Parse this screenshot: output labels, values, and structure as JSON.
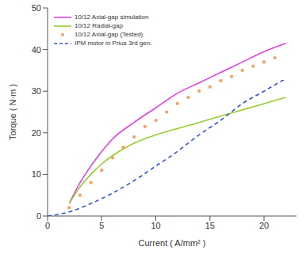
{
  "chart_data": {
    "type": "line",
    "x_label": "Current ( A/mm² )",
    "y_label": "Torque ( N·m )",
    "xlim": [
      0,
      23
    ],
    "xticks": [
      0,
      5,
      10,
      15,
      20
    ],
    "ylim": [
      0,
      50
    ],
    "yticks": [
      0,
      10,
      20,
      30,
      40,
      50
    ],
    "grid": false,
    "legend": "upper left",
    "series": [
      {
        "name": "10/12 Axial-gap simulation",
        "type": "line",
        "color": "#e040e0",
        "line_style": "solid",
        "x": [
          2,
          3,
          4,
          5,
          6,
          8,
          10,
          12,
          14,
          16,
          18,
          20,
          22
        ],
        "values": [
          3,
          8,
          12,
          15.5,
          18.5,
          22.5,
          26,
          29.5,
          32,
          34.5,
          37,
          39.5,
          41.5
        ]
      },
      {
        "name": "10/12 Radial-gap",
        "type": "line",
        "color": "#99cc33",
        "line_style": "solid",
        "x": [
          2,
          3,
          4,
          5,
          6,
          8,
          10,
          12,
          14,
          16,
          18,
          20,
          22
        ],
        "values": [
          3,
          7,
          10,
          12.5,
          14.5,
          17.5,
          19.5,
          21,
          22.5,
          24,
          25.5,
          27,
          28.5
        ]
      },
      {
        "name": "10/12 Axial-gap (Tested)",
        "type": "scatter",
        "color": "#f5a060",
        "marker": "circle",
        "x": [
          2,
          3,
          4,
          5,
          6,
          7,
          8,
          9,
          10,
          11,
          12,
          13,
          14,
          15,
          16,
          17,
          18,
          19,
          20,
          21
        ],
        "values": [
          2,
          5,
          8,
          11,
          14,
          16.5,
          19,
          21.5,
          23,
          25,
          27,
          28.5,
          30,
          31,
          32.5,
          33.5,
          35,
          36,
          37,
          38
        ]
      },
      {
        "name": "IPM motor in Prius 3rd gen.",
        "type": "line",
        "color": "#3355cc",
        "line_style": "dashed",
        "x": [
          0,
          2,
          4,
          6,
          8,
          10,
          12,
          14,
          16,
          18,
          20,
          22
        ],
        "values": [
          0,
          1,
          3,
          5.5,
          8.5,
          12,
          15.5,
          19.5,
          23,
          27,
          30,
          33
        ]
      }
    ]
  }
}
